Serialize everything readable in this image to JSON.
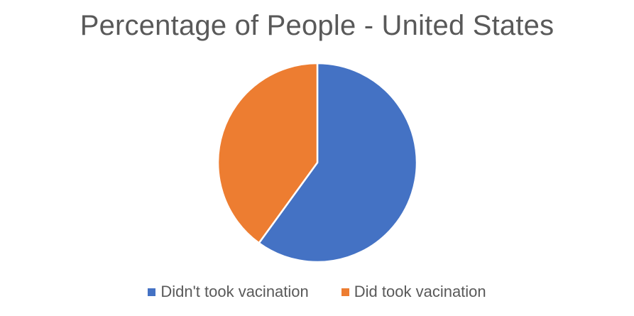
{
  "chart_data": {
    "type": "pie",
    "title": "Percentage of People - United States",
    "series": [
      {
        "values": [
          60,
          40
        ]
      }
    ],
    "categories": [
      "Didn't took vacination",
      "Did took vacination"
    ],
    "colors": [
      "#4472C4",
      "#ED7D31"
    ],
    "start_angle": "12 o'clock",
    "direction": "clockwise",
    "legend_position": "bottom"
  }
}
